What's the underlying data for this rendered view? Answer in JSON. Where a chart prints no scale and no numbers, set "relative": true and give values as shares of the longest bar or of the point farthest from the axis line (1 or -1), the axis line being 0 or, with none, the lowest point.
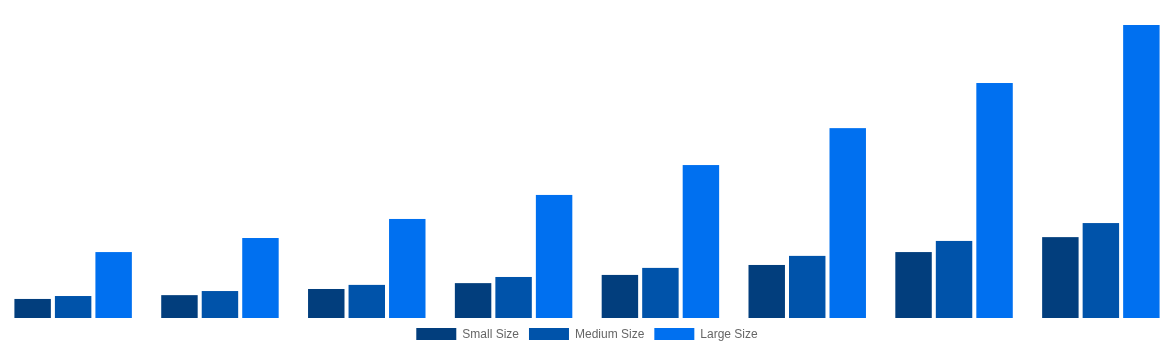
{
  "chart_data": {
    "type": "bar",
    "relative": true,
    "legend": "bottom",
    "categories": [
      null,
      null,
      null,
      null,
      null,
      null,
      null,
      null
    ],
    "series": [
      {
        "name": "Small Size",
        "color": "#023e7d",
        "values": [
          0.065,
          0.078,
          0.099,
          0.119,
          0.147,
          0.181,
          0.225,
          0.276
        ]
      },
      {
        "name": "Medium Size",
        "color": "#0053aa",
        "values": [
          0.075,
          0.092,
          0.113,
          0.14,
          0.171,
          0.212,
          0.263,
          0.324
        ]
      },
      {
        "name": "Large Size",
        "color": "#0070f0",
        "values": [
          0.225,
          0.273,
          0.338,
          0.42,
          0.522,
          0.648,
          0.802,
          1
        ]
      }
    ]
  }
}
